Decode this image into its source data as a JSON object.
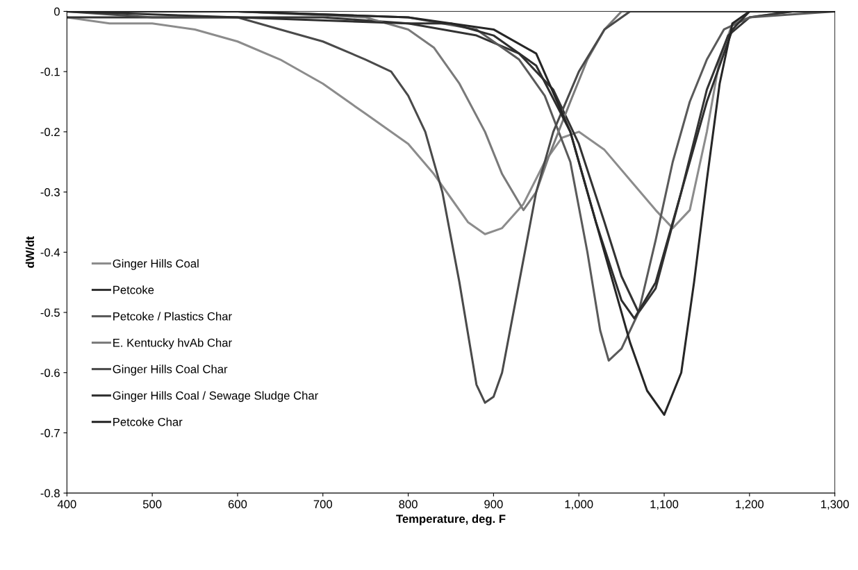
{
  "chart_data": {
    "type": "line",
    "xlabel": "Temperature, deg. F",
    "ylabel": "dW/dt",
    "xlim": [
      400,
      1300
    ],
    "ylim": [
      -0.8,
      0
    ],
    "xticks": [
      400,
      500,
      600,
      700,
      800,
      900,
      {
        "value": 1000,
        "label": "1,000"
      },
      {
        "value": 1100,
        "label": "1,100"
      },
      {
        "value": 1200,
        "label": "1,200"
      },
      {
        "value": 1300,
        "label": "1,300"
      }
    ],
    "yticks": [
      {
        "value": -0.8,
        "label": "-0.8"
      },
      {
        "value": -0.7,
        "label": "-0.7"
      },
      {
        "value": -0.6,
        "label": "-0.6"
      },
      {
        "value": -0.5,
        "label": "-0.5"
      },
      {
        "value": -0.4,
        "label": "-0.4"
      },
      {
        "value": -0.3,
        "label": "-0.3"
      },
      {
        "value": -0.2,
        "label": "-0.2"
      },
      {
        "value": -0.1,
        "label": "-0.1"
      },
      {
        "value": 0,
        "label": "0"
      }
    ],
    "grid": false,
    "legend": "left",
    "marker": "none",
    "line_style": "solid",
    "series": [
      {
        "name": "Ginger Hills Coal",
        "color": "#8c8c8c",
        "x": [
          400,
          450,
          500,
          550,
          600,
          650,
          700,
          750,
          800,
          830,
          850,
          870,
          890,
          910,
          935,
          960,
          980,
          1000,
          1030,
          1060,
          1090,
          1110,
          1130,
          1150,
          1165,
          1180,
          1200,
          1250,
          1300
        ],
        "values": [
          -0.01,
          -0.02,
          -0.02,
          -0.03,
          -0.05,
          -0.08,
          -0.12,
          -0.17,
          -0.22,
          -0.27,
          -0.31,
          -0.35,
          -0.37,
          -0.36,
          -0.32,
          -0.25,
          -0.21,
          -0.2,
          -0.23,
          -0.28,
          -0.33,
          -0.36,
          -0.33,
          -0.2,
          -0.08,
          -0.02,
          -0.01,
          0,
          0
        ]
      },
      {
        "name": "Petcoke",
        "color": "#333333",
        "x": [
          400,
          500,
          600,
          700,
          800,
          880,
          930,
          970,
          1000,
          1030,
          1050,
          1070,
          1090,
          1120,
          1150,
          1175,
          1200,
          1250,
          1300
        ],
        "values": [
          -0.01,
          -0.01,
          -0.01,
          -0.01,
          -0.02,
          -0.04,
          -0.07,
          -0.13,
          -0.22,
          -0.35,
          -0.44,
          -0.5,
          -0.46,
          -0.3,
          -0.13,
          -0.04,
          -0.01,
          0,
          0
        ]
      },
      {
        "name": "Petcoke / Plastics Char",
        "color": "#5a5a5a",
        "x": [
          400,
          600,
          800,
          880,
          930,
          960,
          990,
          1010,
          1025,
          1035,
          1050,
          1070,
          1090,
          1110,
          1130,
          1150,
          1170,
          1200,
          1300
        ],
        "values": [
          0,
          0,
          -0.01,
          -0.03,
          -0.08,
          -0.14,
          -0.25,
          -0.4,
          -0.53,
          -0.58,
          -0.56,
          -0.5,
          -0.38,
          -0.25,
          -0.15,
          -0.08,
          -0.03,
          -0.01,
          0
        ]
      },
      {
        "name": "E. Kentucky hvAb Char",
        "color": "#7a7a7a",
        "x": [
          400,
          600,
          750,
          800,
          830,
          860,
          890,
          910,
          935,
          950,
          965,
          990,
          1010,
          1030,
          1050,
          1100,
          1200,
          1300
        ],
        "values": [
          0,
          0,
          -0.01,
          -0.03,
          -0.06,
          -0.12,
          -0.2,
          -0.27,
          -0.33,
          -0.3,
          -0.24,
          -0.15,
          -0.08,
          -0.03,
          0,
          0,
          0,
          0
        ]
      },
      {
        "name": "Ginger Hills Coal Char",
        "color": "#4a4a4a",
        "x": [
          400,
          500,
          600,
          650,
          700,
          750,
          780,
          800,
          820,
          840,
          860,
          880,
          890,
          900,
          910,
          930,
          950,
          970,
          1000,
          1030,
          1060,
          1100,
          1200,
          1300
        ],
        "values": [
          0,
          -0.01,
          -0.01,
          -0.03,
          -0.05,
          -0.08,
          -0.1,
          -0.14,
          -0.2,
          -0.3,
          -0.45,
          -0.62,
          -0.65,
          -0.64,
          -0.6,
          -0.45,
          -0.3,
          -0.2,
          -0.1,
          -0.03,
          0,
          0,
          0,
          0
        ]
      },
      {
        "name": "Ginger Hills Coal / Sewage Sludge Char",
        "color": "#2e2e2e",
        "x": [
          400,
          600,
          800,
          850,
          900,
          950,
          990,
          1020,
          1050,
          1065,
          1090,
          1120,
          1150,
          1180,
          1200,
          1250,
          1300
        ],
        "values": [
          0,
          -0.01,
          -0.02,
          -0.02,
          -0.04,
          -0.09,
          -0.2,
          -0.35,
          -0.48,
          -0.51,
          -0.45,
          -0.3,
          -0.15,
          -0.03,
          0,
          0,
          0
        ]
      },
      {
        "name": "Petcoke Char",
        "color": "#262626",
        "x": [
          400,
          600,
          800,
          850,
          900,
          950,
          990,
          1010,
          1030,
          1060,
          1080,
          1100,
          1120,
          1135,
          1150,
          1165,
          1180,
          1200,
          1250,
          1300
        ],
        "values": [
          0,
          0,
          -0.01,
          -0.02,
          -0.03,
          -0.07,
          -0.2,
          -0.3,
          -0.4,
          -0.55,
          -0.63,
          -0.67,
          -0.6,
          -0.45,
          -0.28,
          -0.12,
          -0.02,
          0,
          0,
          0
        ]
      }
    ]
  }
}
